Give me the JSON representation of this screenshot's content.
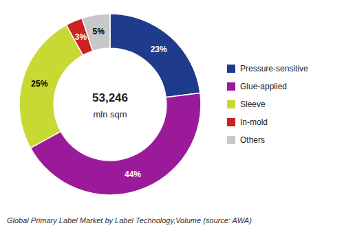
{
  "chart_data": {
    "type": "donut",
    "title": "Global Primary Label Market by Label Technology,Volume (source: AWA)",
    "annotations": [
      "53,246",
      "mln sqm"
    ],
    "categories": [
      "Pressure-sensitive",
      "Glue-applied",
      "Sleeve",
      "In-mold",
      "Others"
    ],
    "values": [
      23,
      44,
      25,
      3,
      5
    ],
    "value_labels": [
      "23%",
      "44%",
      "25%",
      "3%",
      "5%"
    ],
    "colors": [
      "#1F3B8C",
      "#9B1A9A",
      "#C8D933",
      "#CC2222",
      "#C8C8C8"
    ],
    "data_labels": true,
    "legend": "right"
  }
}
